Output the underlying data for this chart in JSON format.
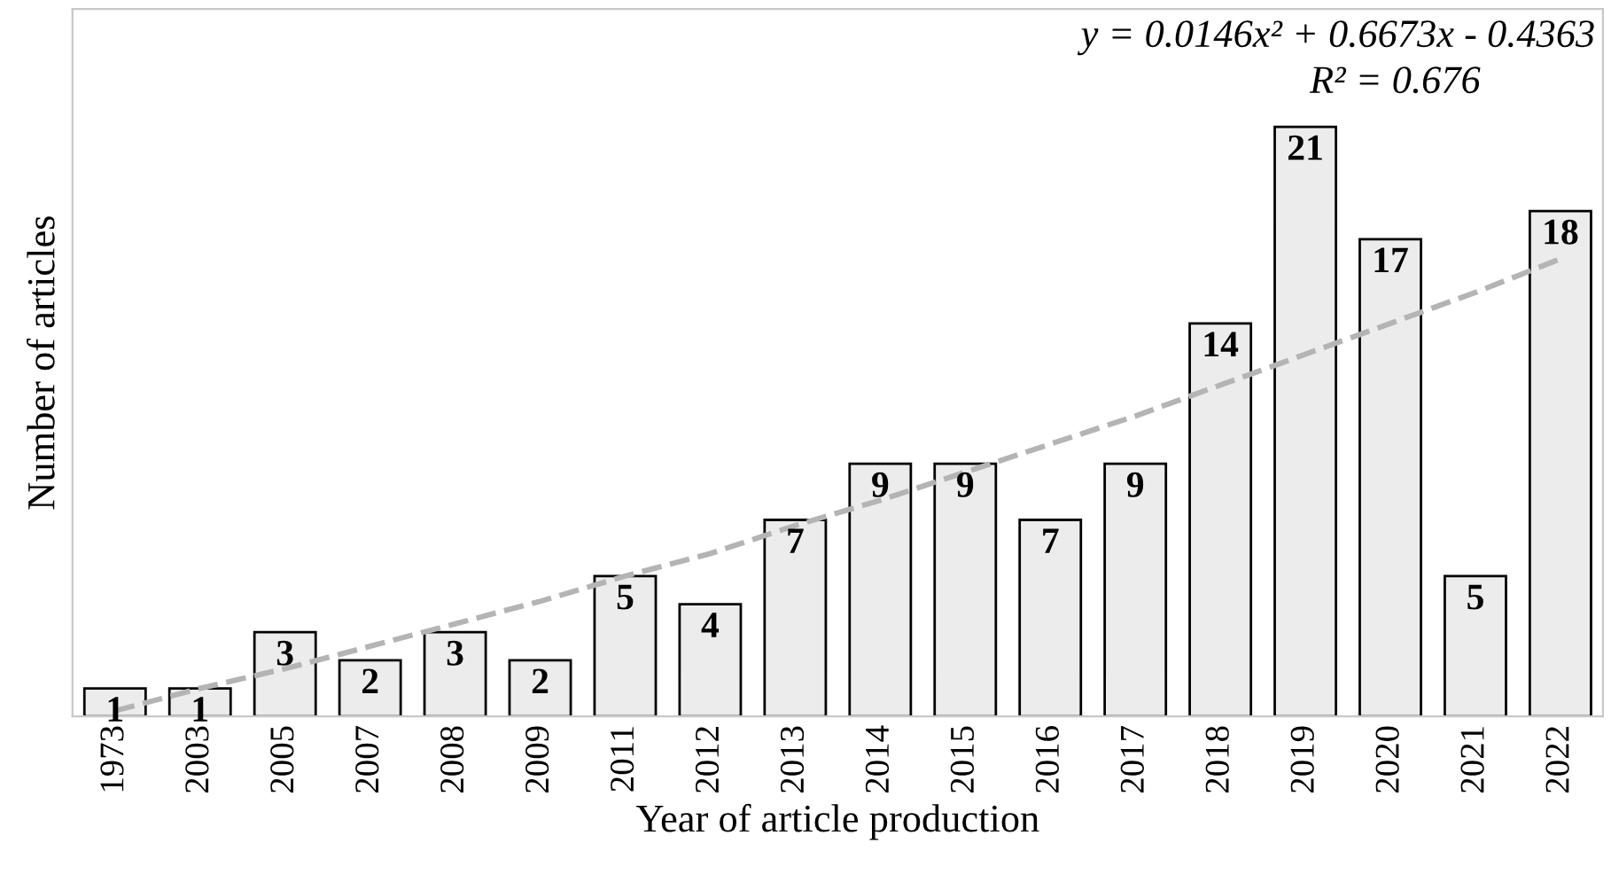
{
  "chart_data": {
    "type": "bar",
    "xlabel": "Year of article production",
    "ylabel": "Number of articles",
    "categories": [
      "1973",
      "2003",
      "2005",
      "2007",
      "2008",
      "2009",
      "2011",
      "2012",
      "2013",
      "2014",
      "2015",
      "2016",
      "2017",
      "2018",
      "2019",
      "2020",
      "2021",
      "2022"
    ],
    "series": [
      {
        "color": "#ececec",
        "values": [
          1,
          1,
          3,
          2,
          3,
          2,
          5,
          4,
          7,
          9,
          9,
          7,
          9,
          14,
          21,
          17,
          5,
          18
        ],
        "value_labels": [
          "1",
          "1",
          "3",
          "2",
          "3",
          "2",
          "5",
          "4",
          "7",
          "9",
          "9",
          "7",
          "9",
          "14",
          "21",
          "17",
          "5",
          "18"
        ]
      },
      {
        "type": "line",
        "color": "#b4b4b4",
        "line_style": "dashed",
        "values": [
          0.2,
          1.0,
          1.7,
          2.5,
          3.3,
          4.1,
          5.0,
          5.8,
          6.8,
          7.7,
          8.7,
          9.7,
          10.7,
          11.8,
          12.9,
          14.0,
          15.1,
          16.3
        ]
      }
    ],
    "annotations": [
      "y = 0.0146x² + 0.6673x - 0.4363",
      "R² = 0.676"
    ],
    "tick_labels": "x",
    "grid": false,
    "legend": false
  }
}
